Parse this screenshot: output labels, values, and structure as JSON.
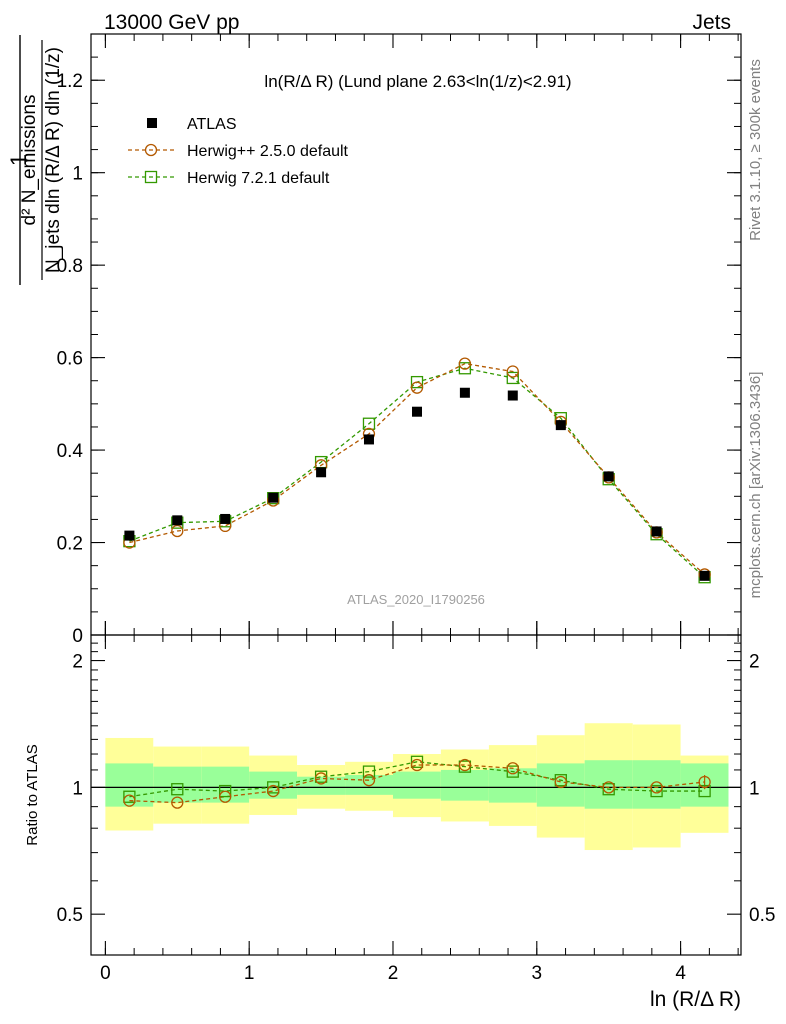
{
  "header": {
    "left": "13000 GeV pp",
    "right": "Jets",
    "plot_title": "ln(R/Δ R) (Lund plane 2.63<ln(1/z)<2.91)",
    "watermark": "ATLAS_2020_I1790256"
  },
  "side_labels": {
    "rivet": "Rivet 3.1.10, ≥ 300k events",
    "mcplots": "mcplots.cern.ch [arXiv:1306.3436]"
  },
  "axes": {
    "main_ylabel_one": "1",
    "main_ylabel_num": "d² N_emissions",
    "main_ylabel_den": "N_jets dln (R/Δ R) dln (1/z)",
    "ratio_ylabel": "Ratio to ATLAS",
    "xlabel": "ln (R/Δ R)",
    "main_yticks": [
      "0",
      "0.2",
      "0.4",
      "0.6",
      "0.8",
      "1",
      "1.2"
    ],
    "ratio_yticks": [
      "0.5",
      "1",
      "2"
    ],
    "xticks": [
      "0",
      "1",
      "2",
      "3",
      "4"
    ]
  },
  "legend": {
    "atlas": "ATLAS",
    "herwigpp": "Herwig++ 2.5.0 default",
    "herwig7": "Herwig 7.2.1 default"
  },
  "colors": {
    "atlas": "#000000",
    "herwigpp": "#b35900",
    "herwig7": "#339900",
    "band_inner": "#99ff99",
    "band_outer": "#ffff99"
  },
  "chart_data": {
    "type": "scatter",
    "xlim": [
      -0.1,
      4.42
    ],
    "main_ylim": [
      0,
      1.3
    ],
    "ratio_ylim": [
      0.4,
      2.3
    ],
    "ratio_scale": "log",
    "bin_edges": [
      0,
      0.333,
      0.667,
      1.0,
      1.333,
      1.667,
      2.0,
      2.333,
      2.667,
      3.0,
      3.333,
      3.667,
      4.0,
      4.333
    ],
    "x": [
      0.167,
      0.5,
      0.833,
      1.167,
      1.5,
      1.833,
      2.167,
      2.5,
      2.833,
      3.167,
      3.5,
      3.833,
      4.167
    ],
    "atlas": [
      0.215,
      0.248,
      0.251,
      0.297,
      0.352,
      0.423,
      0.483,
      0.524,
      0.518,
      0.454,
      0.343,
      0.224,
      0.128
    ],
    "herwigpp": [
      0.2,
      0.225,
      0.236,
      0.291,
      0.367,
      0.435,
      0.535,
      0.587,
      0.57,
      0.461,
      0.341,
      0.222,
      0.131
    ],
    "herwig7": [
      0.203,
      0.243,
      0.246,
      0.296,
      0.374,
      0.457,
      0.547,
      0.577,
      0.556,
      0.469,
      0.337,
      0.218,
      0.125
    ],
    "ratio_herwigpp": [
      0.93,
      0.92,
      0.95,
      0.98,
      1.05,
      1.04,
      1.13,
      1.13,
      1.11,
      1.03,
      1.0,
      1.0,
      1.03
    ],
    "ratio_herwig7": [
      0.95,
      0.99,
      0.98,
      1.0,
      1.06,
      1.09,
      1.15,
      1.12,
      1.09,
      1.04,
      0.99,
      0.98,
      0.98
    ],
    "ratio_herwigpp_err": [
      0,
      0,
      0,
      0,
      0,
      0,
      0,
      0,
      0,
      0,
      0,
      0,
      0.04
    ],
    "band_inner": [
      [
        0.9,
        1.14
      ],
      [
        0.92,
        1.12
      ],
      [
        0.92,
        1.12
      ],
      [
        0.94,
        1.09
      ],
      [
        0.96,
        1.06
      ],
      [
        0.96,
        1.07
      ],
      [
        0.94,
        1.09
      ],
      [
        0.93,
        1.1
      ],
      [
        0.92,
        1.11
      ],
      [
        0.9,
        1.14
      ],
      [
        0.89,
        1.16
      ],
      [
        0.89,
        1.16
      ],
      [
        0.9,
        1.14
      ]
    ],
    "band_outer": [
      [
        0.79,
        1.31
      ],
      [
        0.82,
        1.25
      ],
      [
        0.82,
        1.25
      ],
      [
        0.86,
        1.19
      ],
      [
        0.89,
        1.13
      ],
      [
        0.88,
        1.15
      ],
      [
        0.85,
        1.2
      ],
      [
        0.83,
        1.23
      ],
      [
        0.81,
        1.26
      ],
      [
        0.76,
        1.33
      ],
      [
        0.71,
        1.42
      ],
      [
        0.72,
        1.41
      ],
      [
        0.78,
        1.19
      ]
    ]
  }
}
